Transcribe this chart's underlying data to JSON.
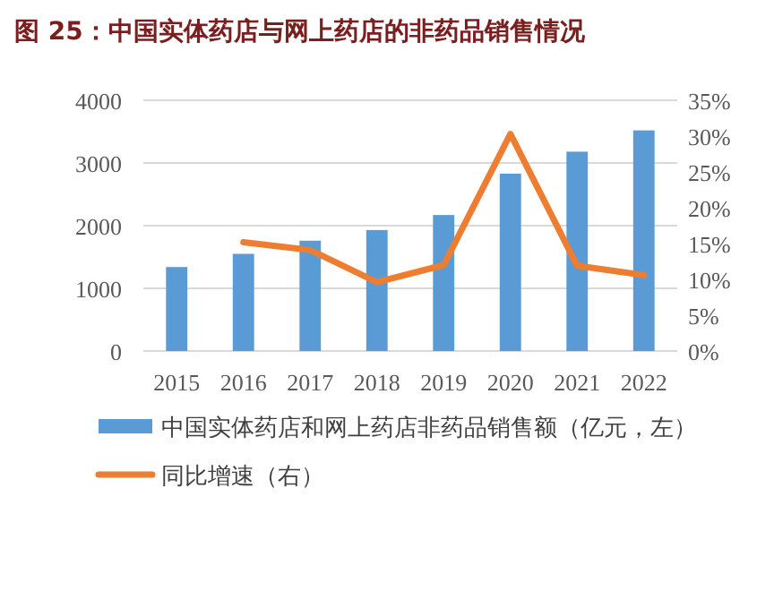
{
  "chart_data": {
    "type": "bar",
    "title": "图 25：中国实体药店与网上药店的非药品销售情况",
    "categories": [
      "2015",
      "2016",
      "2017",
      "2018",
      "2019",
      "2020",
      "2021",
      "2022"
    ],
    "series": [
      {
        "name": "中国实体药店和网上药店非药品销售额（亿元，左）",
        "color": "#5b9bd5",
        "values": [
          1340,
          1550,
          1760,
          1930,
          2170,
          2830,
          3180,
          3520
        ]
      },
      {
        "name": "同比增速（右）",
        "type": "line",
        "axis": "y2",
        "color": "#ed7d31",
        "values": [
          null,
          15.2,
          14.1,
          9.6,
          12.0,
          30.3,
          11.9,
          10.6
        ]
      }
    ],
    "ylim": [
      0,
      4000
    ],
    "yticks": [
      0,
      1000,
      2000,
      3000,
      4000
    ],
    "y2lim": [
      0,
      35
    ],
    "y2ticks": [
      {
        "value": 0,
        "label": "0%"
      },
      {
        "value": 5,
        "label": "5%"
      },
      {
        "value": 10,
        "label": "10%"
      },
      {
        "value": 15,
        "label": "15%"
      },
      {
        "value": 20,
        "label": "20%"
      },
      {
        "value": 25,
        "label": "25%"
      },
      {
        "value": 30,
        "label": "30%"
      },
      {
        "value": 35,
        "label": "35%"
      }
    ],
    "grid": "y",
    "legend": "bottom",
    "marker": "none",
    "line_style": "solid"
  }
}
